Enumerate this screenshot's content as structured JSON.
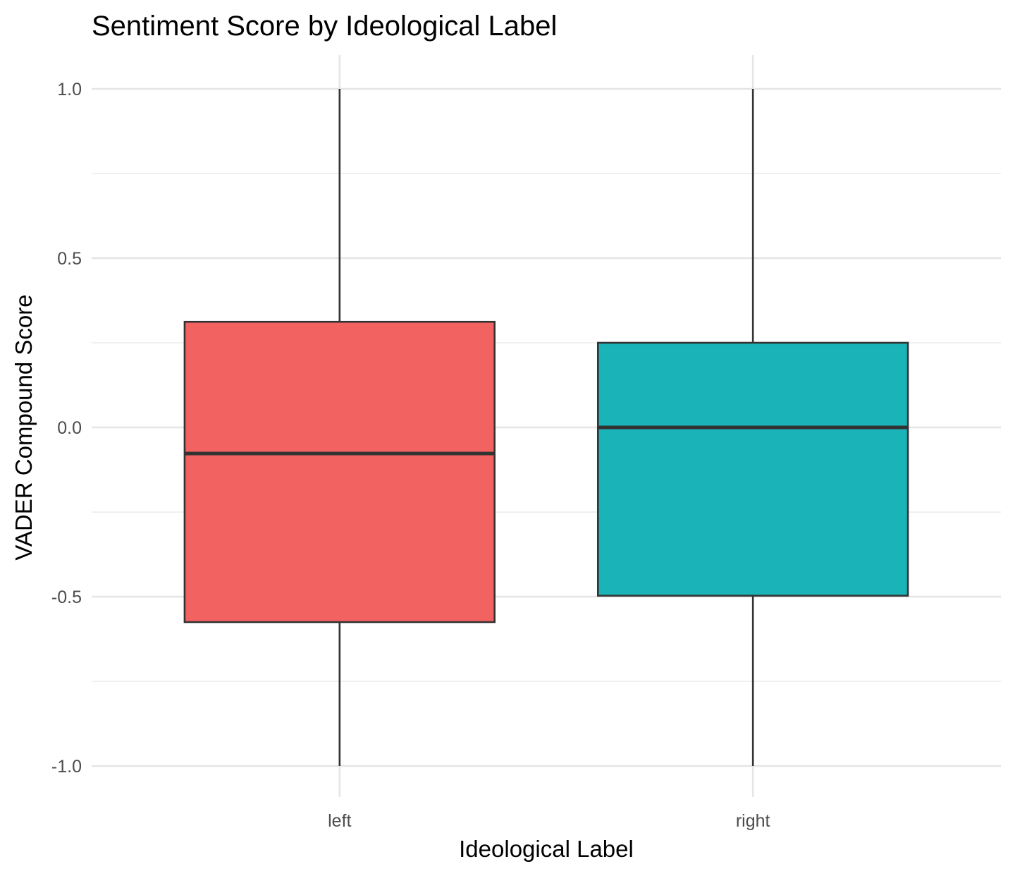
{
  "chart_data": {
    "type": "box",
    "title": "Sentiment Score by Ideological Label",
    "xlabel": "Ideological Label",
    "ylabel": "VADER Compound Score",
    "categories": [
      "left",
      "right"
    ],
    "ylim": [
      -1.08,
      1.1
    ],
    "yticks": [
      -1.0,
      -0.5,
      0.0,
      0.5,
      1.0
    ],
    "ytick_labels": [
      "-1.0",
      "-0.5",
      "0.0",
      "0.5",
      "1.0"
    ],
    "grid": true,
    "legend": "none",
    "series": [
      {
        "category": "left",
        "whisker_low": -1.0,
        "q1": -0.575,
        "median": -0.077,
        "q3": 0.312,
        "whisker_high": 1.0,
        "color": "#F26260"
      },
      {
        "category": "right",
        "whisker_low": -1.0,
        "q1": -0.497,
        "median": 0.0,
        "q3": 0.25,
        "whisker_high": 1.0,
        "color": "#1AB3B8"
      }
    ]
  }
}
